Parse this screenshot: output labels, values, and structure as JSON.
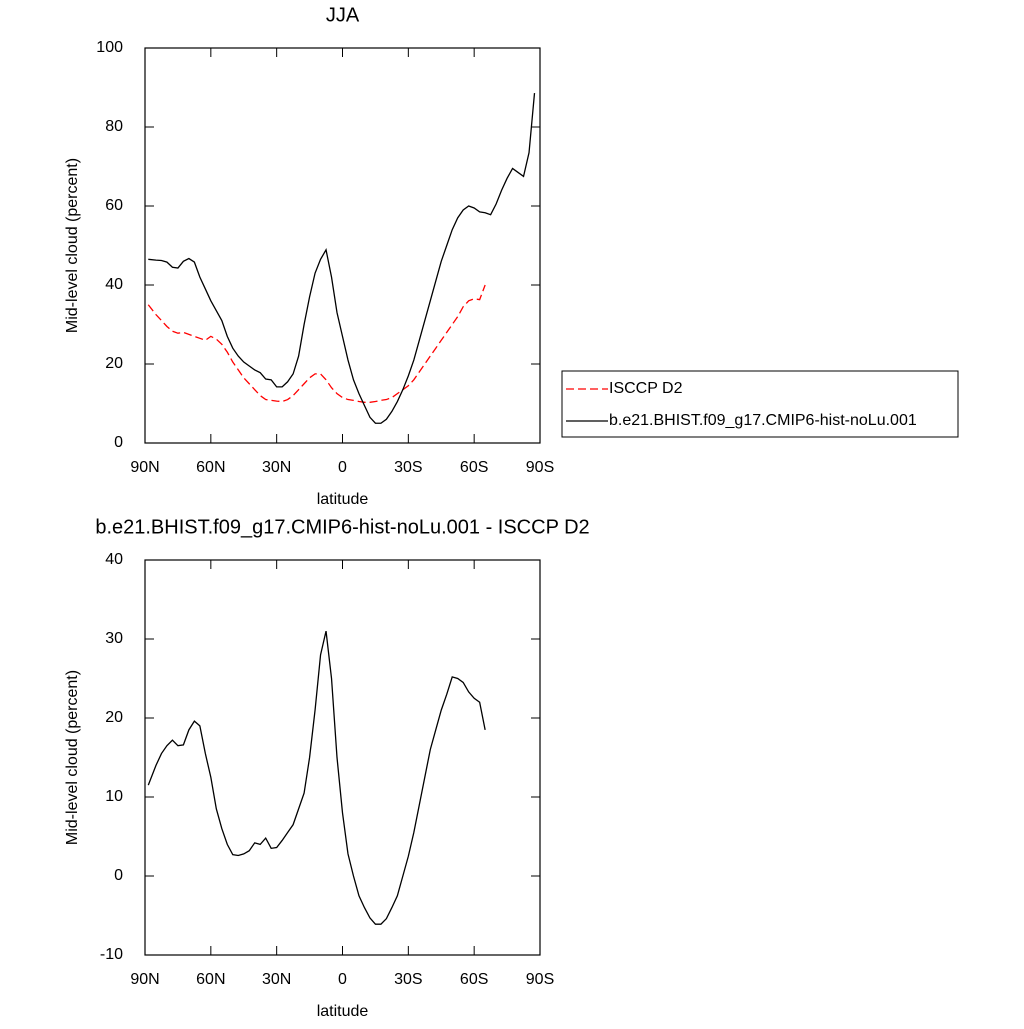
{
  "chart_data": [
    {
      "type": "line",
      "title": "JJA",
      "x_label": "latitude",
      "y_label": "Mid-level cloud (percent)",
      "x": [
        88.5,
        85,
        82.5,
        80,
        77.5,
        75,
        72.5,
        70,
        67.5,
        65,
        62.5,
        60,
        57.5,
        55,
        52.5,
        50,
        47.5,
        45,
        42.5,
        40,
        37.5,
        35,
        32.5,
        30,
        27.5,
        25,
        22.5,
        20,
        17.5,
        15,
        12.5,
        10,
        7.5,
        5,
        2.5,
        0,
        -2.5,
        -5,
        -7.5,
        -10,
        -12.5,
        -15,
        -17.5,
        -20,
        -22.5,
        -25,
        -27.5,
        -30,
        -32.5,
        -35,
        -37.5,
        -40,
        -42.5,
        -45,
        -47.5,
        -50,
        -52.5,
        -55,
        -57.5,
        -60,
        -62.5,
        -65,
        -67.5,
        -70,
        -72.5,
        -75,
        -77.5,
        -80,
        -82.5,
        -85,
        -87.5
      ],
      "series": [
        {
          "name": "ISCCP D2",
          "color": "#ff0000",
          "dashed": true,
          "values": [
            35,
            32.5,
            31,
            29.5,
            28.3,
            27.8,
            28,
            27.5,
            27,
            26.5,
            26,
            27,
            26.3,
            25,
            23,
            20.5,
            18.5,
            16.5,
            15,
            13.5,
            12,
            11,
            10.8,
            10.6,
            10.5,
            11,
            12,
            13.5,
            15,
            16.5,
            17.5,
            17.5,
            16,
            14,
            12.5,
            11.5,
            11,
            10.8,
            10.5,
            10.3,
            10.3,
            10.5,
            10.8,
            11,
            11.5,
            12.5,
            13.5,
            14.5,
            16,
            18,
            20,
            22,
            24,
            26,
            28,
            30,
            32,
            34.5,
            36,
            36.5,
            36.3,
            40,
            null,
            null,
            null,
            null,
            null,
            null,
            null,
            null,
            null
          ]
        },
        {
          "name": "b.e21.BHIST.f09_g17.CMIP6-hist-noLu.001",
          "color": "#000000",
          "dashed": false,
          "values": [
            46.5,
            46.3,
            46.2,
            45.8,
            44.5,
            44.3,
            46,
            46.7,
            45.8,
            42,
            39,
            36,
            33.5,
            31,
            27,
            24,
            22,
            20.5,
            19.5,
            18.5,
            17.8,
            16.2,
            16,
            14.2,
            14.2,
            15.5,
            17.5,
            22,
            30,
            37,
            43,
            46.5,
            48.9,
            42,
            33,
            27,
            21,
            16,
            12.5,
            9.5,
            6.5,
            5,
            5,
            6,
            8,
            10.5,
            13.5,
            17,
            21,
            26,
            31,
            36,
            41,
            46,
            50,
            54,
            57,
            59,
            60,
            59.5,
            58.5,
            58.3,
            57.8,
            60.5,
            64,
            67,
            69.5,
            68.5,
            67.5,
            73.5,
            88.6
          ]
        }
      ],
      "xlim": [
        90,
        -90
      ],
      "xticks": [
        {
          "value": 90,
          "label": "90N"
        },
        {
          "value": 60,
          "label": "60N"
        },
        {
          "value": 30,
          "label": "30N"
        },
        0,
        {
          "value": -30,
          "label": "30S"
        },
        {
          "value": -60,
          "label": "60S"
        },
        {
          "value": -90,
          "label": "90S"
        }
      ],
      "ylim": [
        0,
        100
      ],
      "yticks": [
        0,
        20,
        40,
        60,
        80,
        100
      ],
      "legend": "right"
    },
    {
      "type": "line",
      "title": "b.e21.BHIST.f09_g17.CMIP6-hist-noLu.001 - ISCCP D2",
      "x_label": "latitude",
      "y_label": "Mid-level cloud (percent)",
      "x": [
        88.5,
        85,
        82.5,
        80,
        77.5,
        75,
        72.5,
        70,
        67.5,
        65,
        62.5,
        60,
        57.5,
        55,
        52.5,
        50,
        47.5,
        45,
        42.5,
        40,
        37.5,
        35,
        32.5,
        30,
        27.5,
        25,
        22.5,
        20,
        17.5,
        15,
        12.5,
        10,
        7.5,
        5,
        2.5,
        0,
        -2.5,
        -5,
        -7.5,
        -10,
        -12.5,
        -15,
        -17.5,
        -20,
        -22.5,
        -25,
        -27.5,
        -30,
        -32.5,
        -35,
        -37.5,
        -40,
        -42.5,
        -45,
        -47.5,
        -50,
        -52.5,
        -55,
        -57.5,
        -60,
        -62.5,
        -65,
        -67.5,
        -70,
        -72.5,
        -75,
        -77.5,
        -80,
        -82.5,
        -85,
        -87.5
      ],
      "color": "#000000",
      "values": [
        11.5,
        14,
        15.5,
        16.5,
        17.2,
        16.5,
        16.6,
        18.5,
        19.6,
        19,
        15.5,
        12.5,
        8.5,
        6,
        4,
        2.7,
        2.6,
        2.8,
        3.2,
        4.2,
        4,
        4.8,
        3.5,
        3.6,
        4.5,
        5.5,
        6.5,
        8.5,
        10.5,
        15,
        21,
        28,
        31,
        25,
        15,
        8,
        2.8,
        0,
        -2.5,
        -4,
        -5.3,
        -6.1,
        -6.1,
        -5.4,
        -4,
        -2.5,
        0,
        2.5,
        5.5,
        9,
        12.5,
        16,
        18.5,
        21,
        23,
        25.2,
        25,
        24.5,
        23.3,
        22.5,
        22,
        18.5,
        null,
        null,
        null,
        null,
        null,
        null,
        null,
        null,
        null
      ],
      "xlim": [
        90,
        -90
      ],
      "xticks": [
        {
          "value": 90,
          "label": "90N"
        },
        {
          "value": 60,
          "label": "60N"
        },
        {
          "value": 30,
          "label": "30N"
        },
        0,
        {
          "value": -30,
          "label": "30S"
        },
        {
          "value": -60,
          "label": "60S"
        },
        {
          "value": -90,
          "label": "90S"
        }
      ],
      "ylim": [
        -10,
        40
      ],
      "yticks": [
        -10,
        0,
        10,
        20,
        30,
        40
      ]
    }
  ]
}
